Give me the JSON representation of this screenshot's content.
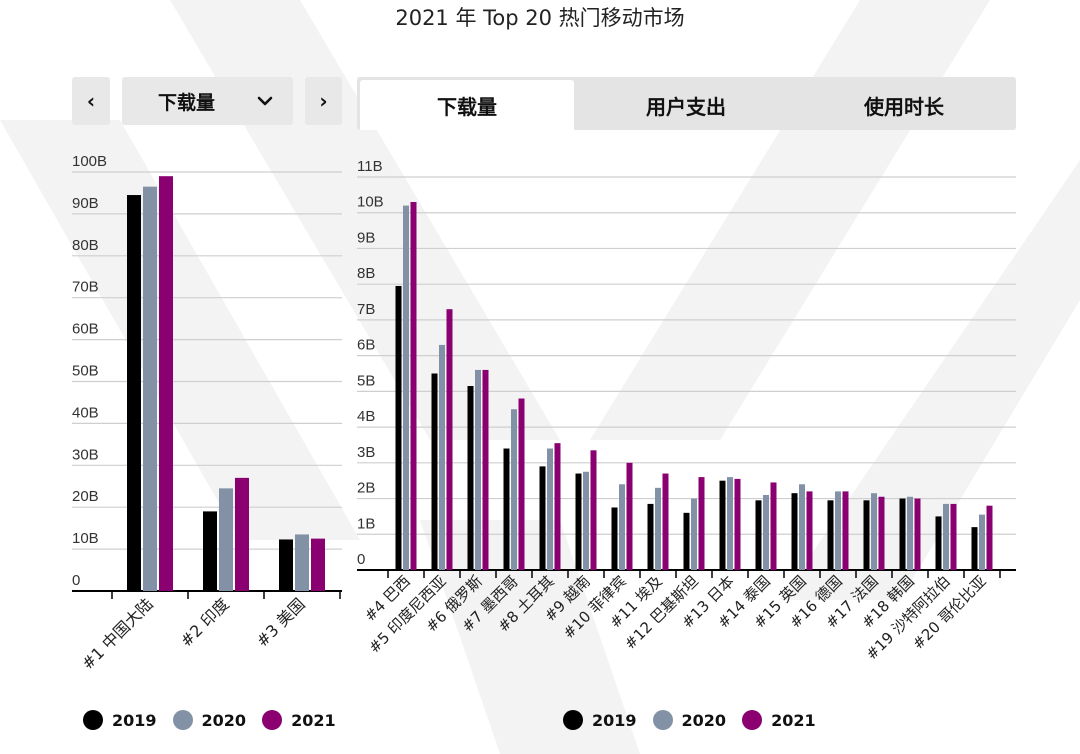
{
  "title": "2021 年 Top 20 热门移动市场",
  "controls": {
    "prev_icon": "‹",
    "next_icon": "›",
    "dropdown_label": "下载量",
    "dropdown_icon": "⌄"
  },
  "tabs": [
    {
      "label": "下载量",
      "active": true
    },
    {
      "label": "用户支出",
      "active": false
    },
    {
      "label": "使用时长",
      "active": false
    }
  ],
  "colors": {
    "2019": "#000000",
    "2020": "#8391a6",
    "2021": "#8a0070",
    "grid": "#cfcfcf",
    "axis": "#000000"
  },
  "legend": [
    {
      "label": "2019"
    },
    {
      "label": "2020"
    },
    {
      "label": "2021"
    }
  ],
  "chart_data": [
    {
      "type": "bar",
      "categories": [
        "#1 中国大陆",
        "#2 印度",
        "#3 美国"
      ],
      "series": [
        {
          "name": "2019",
          "values": [
            94.5,
            19.0,
            12.3
          ]
        },
        {
          "name": "2020",
          "values": [
            96.5,
            24.5,
            13.5
          ]
        },
        {
          "name": "2021",
          "values": [
            99.0,
            27.0,
            12.5
          ]
        }
      ],
      "ylim": [
        0,
        100
      ],
      "ytick_labels": [
        "0",
        "10B",
        "20B",
        "30B",
        "40B",
        "50B",
        "60B",
        "70B",
        "80B",
        "90B",
        "100B"
      ],
      "grid": true,
      "legend_position": "bottom"
    },
    {
      "type": "bar",
      "categories": [
        "#4 巴西",
        "#5 印度尼西亚",
        "#6 俄罗斯",
        "#7 墨西哥",
        "#8 土耳其",
        "#9 越南",
        "#10 菲律宾",
        "#11 埃及",
        "#12 巴基斯坦",
        "#13 日本",
        "#14 泰国",
        "#15 英国",
        "#16 德国",
        "#17 法国",
        "#18 韩国",
        "#19 沙特阿拉伯",
        "#20 哥伦比亚"
      ],
      "series": [
        {
          "name": "2019",
          "values": [
            7.95,
            5.5,
            5.15,
            3.4,
            2.9,
            2.7,
            1.75,
            1.85,
            1.6,
            2.5,
            1.95,
            2.15,
            1.95,
            1.95,
            2.0,
            1.5,
            1.2
          ]
        },
        {
          "name": "2020",
          "values": [
            10.2,
            6.3,
            5.6,
            4.5,
            3.4,
            2.75,
            2.4,
            2.3,
            2.0,
            2.6,
            2.1,
            2.4,
            2.2,
            2.15,
            2.05,
            1.85,
            1.55
          ]
        },
        {
          "name": "2021",
          "values": [
            10.3,
            7.3,
            5.6,
            4.8,
            3.55,
            3.35,
            3.0,
            2.7,
            2.6,
            2.55,
            2.45,
            2.2,
            2.2,
            2.05,
            2.0,
            1.85,
            1.8
          ]
        }
      ],
      "ylim": [
        0,
        11
      ],
      "ytick_labels": [
        "0",
        "1B",
        "2B",
        "3B",
        "4B",
        "5B",
        "6B",
        "7B",
        "8B",
        "9B",
        "10B",
        "11B"
      ],
      "grid": true,
      "legend_position": "bottom"
    }
  ]
}
